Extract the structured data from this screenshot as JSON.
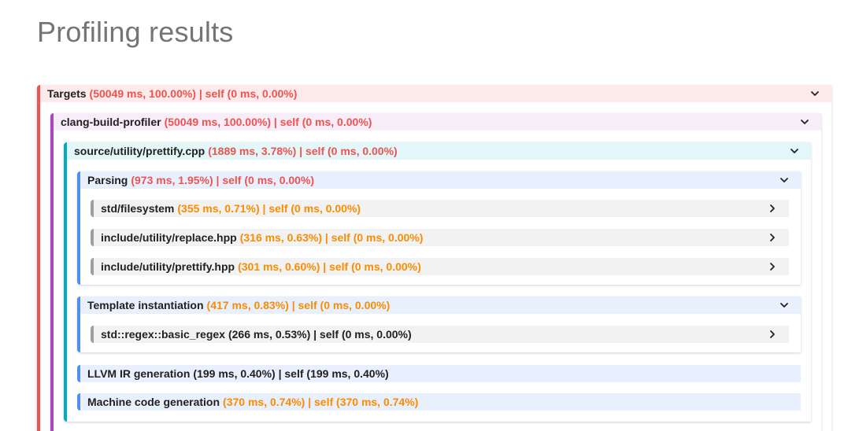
{
  "title": "Profiling results",
  "nodes": {
    "targets": {
      "name": "Targets",
      "stats": "(50049 ms, 100.00%) | self (0 ms, 0.00%)"
    },
    "clang": {
      "name": "clang-build-profiler",
      "stats": "(50049 ms, 100.00%) | self (0 ms, 0.00%)"
    },
    "file": {
      "name": "source/utility/prettify.cpp",
      "stats": "(1889 ms, 3.78%) | self (0 ms, 0.00%)"
    },
    "parsing": {
      "name": "Parsing",
      "stats": "(973 ms, 1.95%) | self (0 ms, 0.00%)"
    },
    "fs": {
      "name": "std/filesystem",
      "stats": "(355 ms, 0.71%) | self (0 ms, 0.00%)"
    },
    "replace": {
      "name": "include/utility/replace.hpp",
      "stats": "(316 ms, 0.63%) | self (0 ms, 0.00%)"
    },
    "prettify": {
      "name": "include/utility/prettify.hpp",
      "stats": "(301 ms, 0.60%) | self (0 ms, 0.00%)"
    },
    "template": {
      "name": "Template instantiation",
      "stats": "(417 ms, 0.83%) | self (0 ms, 0.00%)"
    },
    "regex": {
      "name": "std::regex::basic_regex",
      "stats": "(266 ms, 0.53%) | self (0 ms, 0.00%)"
    },
    "llvm": {
      "name": "LLVM IR generation",
      "stats": "(199 ms, 0.40%) | self (199 ms, 0.40%)"
    },
    "machine": {
      "name": "Machine code generation",
      "stats": "(370 ms, 0.74%) | self (370 ms, 0.74%)"
    }
  },
  "icons": {
    "expanded": "chevron-down-icon",
    "collapsed": "chevron-right-icon"
  },
  "colors": {
    "targets": "#ef5350",
    "clang": "#ab47bc",
    "file": "#00acc1",
    "phase": "#4e8ff0",
    "leaf": "#9e9e9e",
    "stat_red": "#ef5350",
    "stat_orange": "#fb8c00",
    "stat_black": "#212121"
  }
}
